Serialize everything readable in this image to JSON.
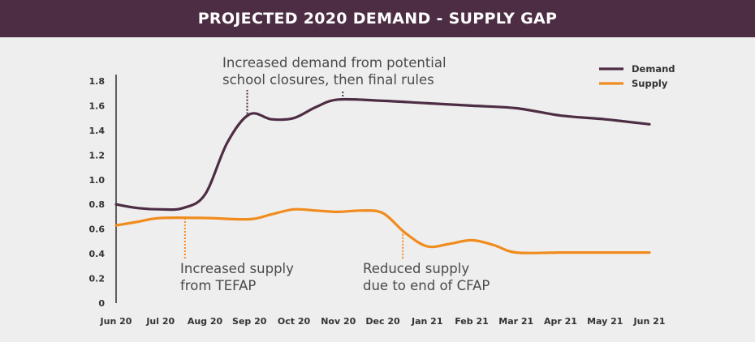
{
  "title": "PROJECTED 2020 DEMAND - SUPPLY GAP",
  "chart_data": {
    "type": "line",
    "categories": [
      "Jun 20",
      "Jul 20",
      "Aug 20",
      "Sep 20",
      "Oct 20",
      "Nov 20",
      "Dec 20",
      "Jan 21",
      "Feb 21",
      "Mar 21",
      "Apr 21",
      "May 21",
      "Jun 21"
    ],
    "ylim": [
      0,
      1.8
    ],
    "yticks": [
      "0",
      "0.2",
      "0.4",
      "0.6",
      "0.8",
      "1.0",
      "1.2",
      "1.4",
      "1.6",
      "1.8"
    ],
    "grid": false,
    "legend_position": "top-right",
    "series": [
      {
        "name": "Demand",
        "color": "#4d2d44",
        "points": [
          [
            0,
            0.8
          ],
          [
            0.5,
            0.77
          ],
          [
            1,
            0.76
          ],
          [
            1.5,
            0.77
          ],
          [
            2,
            0.88
          ],
          [
            2.5,
            1.3
          ],
          [
            3,
            1.53
          ],
          [
            3.5,
            1.49
          ],
          [
            4,
            1.5
          ],
          [
            4.5,
            1.59
          ],
          [
            5,
            1.65
          ],
          [
            6,
            1.64
          ],
          [
            7,
            1.62
          ],
          [
            8,
            1.6
          ],
          [
            9,
            1.58
          ],
          [
            10,
            1.52
          ],
          [
            11,
            1.49
          ],
          [
            12,
            1.45
          ]
        ]
      },
      {
        "name": "Supply",
        "color": "#f08c1e",
        "points": [
          [
            0,
            0.63
          ],
          [
            0.5,
            0.66
          ],
          [
            1,
            0.69
          ],
          [
            2,
            0.69
          ],
          [
            3,
            0.68
          ],
          [
            3.5,
            0.72
          ],
          [
            4,
            0.76
          ],
          [
            4.5,
            0.75
          ],
          [
            5,
            0.74
          ],
          [
            5.5,
            0.75
          ],
          [
            6,
            0.73
          ],
          [
            6.5,
            0.57
          ],
          [
            7,
            0.46
          ],
          [
            7.5,
            0.48
          ],
          [
            8,
            0.51
          ],
          [
            8.5,
            0.47
          ],
          [
            9,
            0.41
          ],
          [
            10,
            0.41
          ],
          [
            11,
            0.41
          ],
          [
            12,
            0.41
          ]
        ]
      }
    ],
    "annotations": [
      {
        "text_lines": [
          "Increased demand from potential",
          "school closures, then final rules"
        ],
        "series": "Demand",
        "markers_x": [
          2.95,
          5.1
        ]
      },
      {
        "text_lines": [
          "Increased supply",
          "from TEFAP"
        ],
        "series": "Supply",
        "markers_x": [
          1.55
        ]
      },
      {
        "text_lines": [
          "Reduced supply",
          "due to end of CFAP"
        ],
        "series": "Supply",
        "markers_x": [
          6.45
        ]
      }
    ]
  }
}
